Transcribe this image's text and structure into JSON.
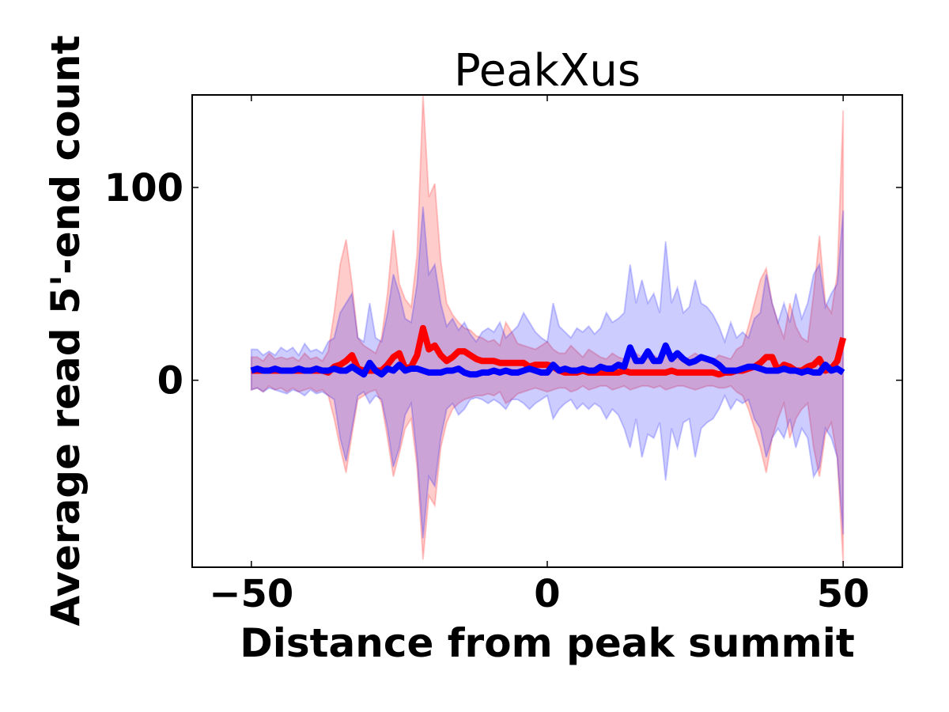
{
  "chart_data": {
    "type": "line",
    "title": "PeakXus",
    "xlabel": "Distance from peak summit",
    "ylabel": "Average read 5'-end count",
    "xlim": [
      -60,
      60
    ],
    "ylim": [
      -97,
      148
    ],
    "xticks": [
      -50,
      0,
      50
    ],
    "xtick_labels": [
      "−50",
      "0",
      "50"
    ],
    "yticks": [
      0,
      100
    ],
    "ytick_labels": [
      "0",
      "100"
    ],
    "grid": false,
    "legend": null,
    "x": [
      -50,
      -49,
      -48,
      -47,
      -46,
      -45,
      -44,
      -43,
      -42,
      -41,
      -40,
      -39,
      -38,
      -37,
      -36,
      -35,
      -34,
      -33,
      -32,
      -31,
      -30,
      -29,
      -28,
      -27,
      -26,
      -25,
      -24,
      -23,
      -22,
      -21,
      -20,
      -19,
      -18,
      -17,
      -16,
      -15,
      -14,
      -13,
      -12,
      -11,
      -10,
      -9,
      -8,
      -7,
      -6,
      -5,
      -4,
      -3,
      -2,
      -1,
      0,
      1,
      2,
      3,
      4,
      5,
      6,
      7,
      8,
      9,
      10,
      11,
      12,
      13,
      14,
      15,
      16,
      17,
      18,
      19,
      20,
      21,
      22,
      23,
      24,
      25,
      26,
      27,
      28,
      29,
      30,
      31,
      32,
      33,
      34,
      35,
      36,
      37,
      38,
      39,
      40,
      41,
      42,
      43,
      44,
      45,
      46,
      47,
      48,
      49,
      50
    ],
    "series": [
      {
        "name": "red-mean",
        "color": "#ff0000",
        "values": [
          5,
          5,
          5,
          5,
          5,
          5,
          5,
          5,
          5,
          5,
          5,
          5,
          5,
          4,
          7,
          8,
          10,
          13,
          6,
          5,
          5,
          5,
          5,
          8,
          12,
          14,
          6,
          7,
          13,
          27,
          16,
          18,
          13,
          10,
          12,
          15,
          15,
          13,
          11,
          10,
          10,
          10,
          9,
          9,
          9,
          9,
          9,
          7,
          8,
          8,
          8,
          7,
          5,
          4,
          4,
          4,
          5,
          4,
          4,
          4,
          4,
          4,
          4,
          5,
          4,
          4,
          4,
          4,
          4,
          4,
          4,
          5,
          4,
          4,
          4,
          4,
          4,
          4,
          4,
          3,
          4,
          4,
          5,
          5,
          6,
          7,
          9,
          12,
          12,
          5,
          8,
          7,
          5,
          5,
          7,
          8,
          11,
          5,
          6,
          10,
          22
        ],
        "band_upper": [
          12,
          12,
          10,
          14,
          11,
          12,
          11,
          12,
          10,
          14,
          11,
          12,
          10,
          15,
          35,
          60,
          73,
          50,
          22,
          18,
          16,
          14,
          22,
          45,
          78,
          50,
          42,
          38,
          65,
          148,
          95,
          102,
          62,
          40,
          34,
          30,
          27,
          26,
          23,
          22,
          20,
          21,
          18,
          30,
          25,
          19,
          18,
          17,
          16,
          18,
          20,
          16,
          14,
          14,
          18,
          15,
          12,
          16,
          14,
          12,
          11,
          14,
          12,
          11,
          15,
          14,
          12,
          11,
          13,
          11,
          14,
          12,
          11,
          10,
          12,
          14,
          12,
          11,
          10,
          13,
          12,
          11,
          16,
          18,
          28,
          40,
          52,
          58,
          40,
          30,
          22,
          40,
          28,
          22,
          20,
          45,
          75,
          40,
          35,
          55,
          140
        ],
        "band_lower": [
          -5,
          -4,
          -6,
          -3,
          -5,
          -4,
          -6,
          -4,
          -6,
          -5,
          -4,
          -6,
          -5,
          -8,
          -20,
          -35,
          -48,
          -28,
          -10,
          -8,
          -6,
          -5,
          -12,
          -30,
          -50,
          -38,
          -25,
          -20,
          -45,
          -93,
          -60,
          -65,
          -35,
          -22,
          -15,
          -12,
          -10,
          -9,
          -8,
          -8,
          -7,
          -8,
          -6,
          -12,
          -10,
          -7,
          -6,
          -5,
          -4,
          -5,
          -6,
          -5,
          -4,
          -4,
          -6,
          -5,
          -3,
          -5,
          -4,
          -3,
          -3,
          -5,
          -4,
          -3,
          -5,
          -4,
          -3,
          -3,
          -4,
          -3,
          -5,
          -4,
          -3,
          -3,
          -4,
          -5,
          -4,
          -3,
          -3,
          -4,
          -4,
          -3,
          -6,
          -8,
          -15,
          -25,
          -35,
          -48,
          -30,
          -20,
          -12,
          -30,
          -20,
          -15,
          -12,
          -35,
          -50,
          -28,
          -22,
          -40,
          -95
        ]
      },
      {
        "name": "blue-mean",
        "color": "#0000ff",
        "values": [
          5,
          6,
          5,
          5,
          6,
          5,
          5,
          5,
          6,
          5,
          5,
          6,
          5,
          5,
          6,
          5,
          5,
          7,
          5,
          3,
          9,
          5,
          3,
          6,
          5,
          8,
          5,
          6,
          6,
          5,
          4,
          4,
          4,
          5,
          5,
          6,
          4,
          3,
          3,
          4,
          4,
          5,
          4,
          5,
          4,
          4,
          5,
          6,
          5,
          4,
          4,
          8,
          5,
          6,
          5,
          5,
          6,
          5,
          5,
          7,
          6,
          6,
          8,
          7,
          17,
          10,
          10,
          15,
          10,
          10,
          18,
          11,
          14,
          11,
          9,
          10,
          12,
          11,
          10,
          8,
          5,
          5,
          5,
          6,
          7,
          7,
          6,
          5,
          5,
          5,
          6,
          5,
          5,
          4,
          5,
          4,
          4,
          8,
          5,
          6,
          4
        ],
        "band_upper": [
          16,
          16,
          13,
          15,
          13,
          17,
          15,
          17,
          13,
          19,
          15,
          16,
          14,
          20,
          22,
          35,
          40,
          45,
          22,
          20,
          40,
          22,
          20,
          35,
          55,
          45,
          32,
          30,
          50,
          90,
          55,
          60,
          40,
          28,
          32,
          26,
          30,
          24,
          20,
          25,
          27,
          25,
          30,
          22,
          25,
          28,
          35,
          30,
          25,
          22,
          20,
          40,
          28,
          25,
          22,
          27,
          25,
          28,
          24,
          27,
          35,
          30,
          32,
          35,
          60,
          40,
          52,
          40,
          45,
          35,
          72,
          40,
          48,
          35,
          38,
          52,
          40,
          38,
          34,
          28,
          20,
          30,
          22,
          25,
          22,
          32,
          35,
          55,
          40,
          30,
          40,
          30,
          45,
          32,
          40,
          55,
          60,
          38,
          45,
          50,
          88
        ],
        "band_lower": [
          -5,
          -4,
          -6,
          -4,
          -5,
          -6,
          -7,
          -5,
          -6,
          -8,
          -5,
          -7,
          -6,
          -8,
          -10,
          -30,
          -42,
          -25,
          -8,
          -6,
          -12,
          -8,
          -10,
          -25,
          -45,
          -35,
          -18,
          -12,
          -40,
          -82,
          -50,
          -55,
          -30,
          -15,
          -12,
          -18,
          -15,
          -10,
          -9,
          -10,
          -12,
          -10,
          -12,
          -15,
          -10,
          -10,
          -12,
          -15,
          -12,
          -10,
          -8,
          -20,
          -15,
          -12,
          -10,
          -15,
          -12,
          -15,
          -12,
          -14,
          -20,
          -15,
          -18,
          -25,
          -35,
          -20,
          -40,
          -28,
          -30,
          -22,
          -52,
          -25,
          -35,
          -22,
          -20,
          -40,
          -25,
          -22,
          -20,
          -15,
          -8,
          -15,
          -10,
          -12,
          -10,
          -20,
          -25,
          -40,
          -30,
          -25,
          -30,
          -20,
          -35,
          -25,
          -30,
          -50,
          -45,
          -25,
          -30,
          -40,
          -80
        ]
      }
    ]
  }
}
